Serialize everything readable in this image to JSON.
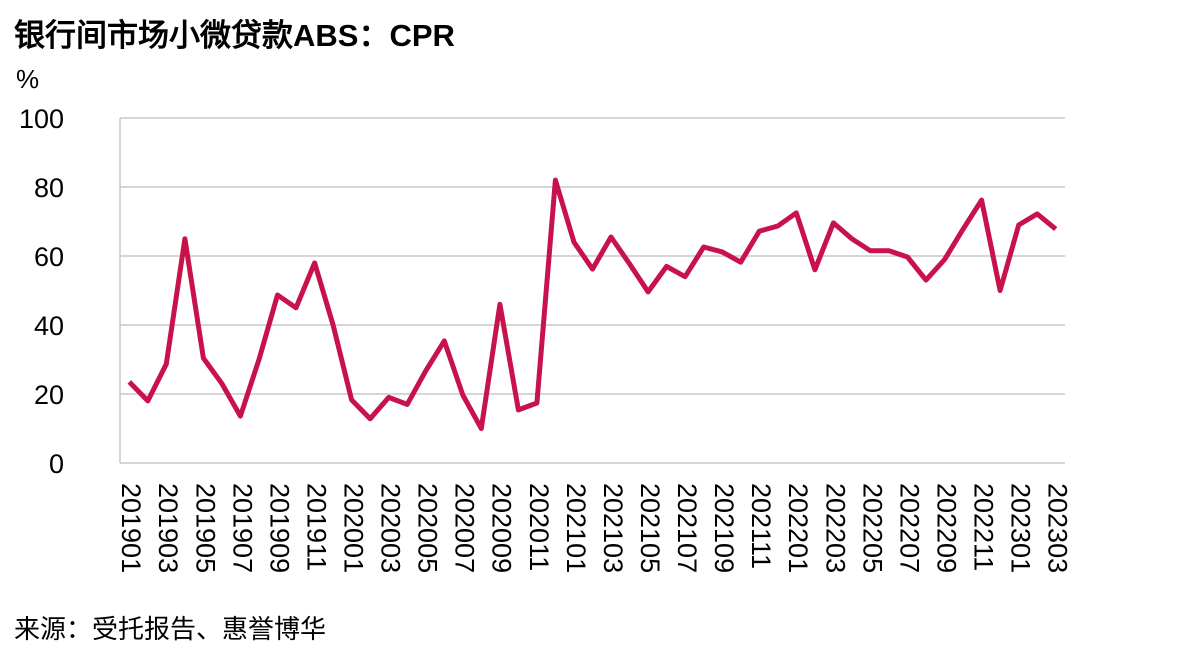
{
  "chart_data": {
    "type": "line",
    "title": "银行间市场小微贷款ABS：CPR",
    "y_unit": "%",
    "source": "来源：受托报告、惠誉博华",
    "categories": [
      "201901",
      null,
      "201903",
      null,
      "201905",
      null,
      "201907",
      null,
      "201909",
      null,
      "201911",
      null,
      "202001",
      null,
      "202003",
      null,
      "202005",
      null,
      "202007",
      null,
      "202009",
      null,
      "202011",
      null,
      "202101",
      null,
      "202103",
      null,
      "202105",
      null,
      "202107",
      null,
      "202109",
      null,
      "202111",
      null,
      "202201",
      null,
      "202203",
      null,
      "202205",
      null,
      "202207",
      null,
      "202209",
      null,
      "202211",
      null,
      "202301",
      null,
      "202303"
    ],
    "series": [
      {
        "name": "CPR",
        "color": "#c8124c",
        "values": [
          23.5,
          18,
          28.7,
          65,
          30.4,
          23,
          13.6,
          30,
          48.7,
          45,
          58,
          40,
          18.3,
          12.8,
          19,
          17,
          26.7,
          35.4,
          19.7,
          10,
          46,
          15.4,
          17.4,
          82,
          64,
          56.2,
          65.5,
          57.7,
          49.6,
          57,
          54,
          62.6,
          61.2,
          58.2,
          67.2,
          68.7,
          72.5,
          56,
          69.6,
          65,
          61.5,
          61.5,
          59.7,
          53,
          59,
          67.8,
          76.2,
          50,
          69,
          72.2,
          67.8
        ]
      }
    ],
    "ylim": [
      0,
      100
    ],
    "yticks": [
      0,
      20,
      40,
      60,
      80,
      100
    ],
    "grid": true
  }
}
